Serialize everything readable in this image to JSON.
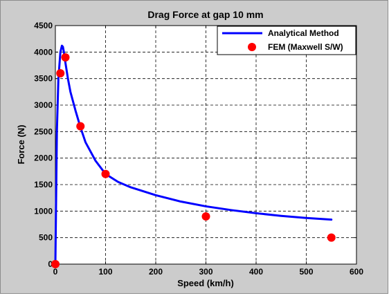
{
  "chart_data": {
    "type": "line",
    "title": "Drag Force at gap 10 mm",
    "xlabel": "Speed (km/h)",
    "ylabel": "Force (N)",
    "xlim": [
      0,
      600
    ],
    "ylim": [
      0,
      4500
    ],
    "xticks": [
      0,
      100,
      200,
      300,
      400,
      500,
      600
    ],
    "yticks": [
      0,
      500,
      1000,
      1500,
      2000,
      2500,
      3000,
      3500,
      4000,
      4500
    ],
    "grid": true,
    "legend_position": "top-right",
    "series": [
      {
        "name": "Analytical Method",
        "style": "line",
        "color": "#0000ff",
        "x": [
          0,
          3,
          6,
          10,
          13,
          15,
          17,
          20,
          25,
          30,
          40,
          50,
          60,
          80,
          100,
          125,
          150,
          200,
          250,
          300,
          350,
          400,
          450,
          500,
          550
        ],
        "y": [
          0,
          2500,
          3500,
          4000,
          4120,
          4100,
          4000,
          3800,
          3500,
          3250,
          2900,
          2580,
          2300,
          1950,
          1700,
          1550,
          1450,
          1300,
          1180,
          1090,
          1020,
          960,
          910,
          870,
          840
        ]
      },
      {
        "name": "FEM (Maxwell S/W)",
        "style": "marker",
        "color": "#ff0000",
        "x": [
          0,
          10,
          20,
          50,
          100,
          300,
          550
        ],
        "y": [
          0,
          3600,
          3900,
          2600,
          1700,
          900,
          500
        ]
      }
    ]
  }
}
